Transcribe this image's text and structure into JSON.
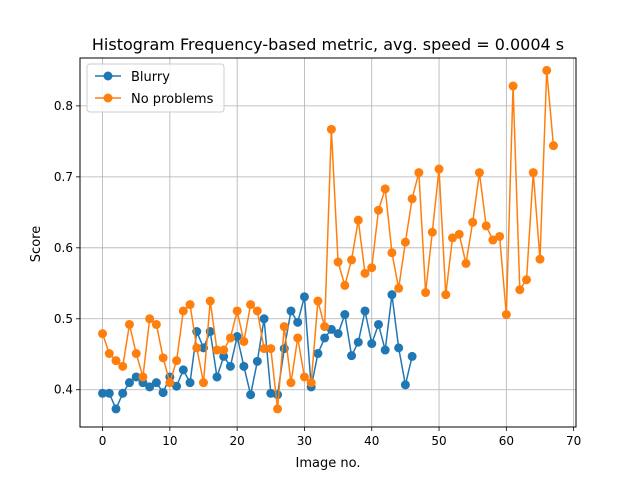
{
  "chart_data": {
    "type": "line",
    "title": "Histogram Frequency-based metric, avg. speed = 0.0004 s",
    "xlabel": "Image no.",
    "ylabel": "Score",
    "xlim": [
      -3.35,
      70.35
    ],
    "ylim": [
      0.3475,
      0.8675
    ],
    "xticks": [
      0,
      10,
      20,
      30,
      40,
      50,
      60,
      70
    ],
    "yticks": [
      0.4,
      0.5,
      0.6,
      0.7,
      0.8
    ],
    "grid": true,
    "legend_position": "upper-left",
    "series": [
      {
        "name": "Blurry",
        "color": "#1f77b4",
        "x": [
          0,
          1,
          2,
          3,
          4,
          5,
          6,
          7,
          8,
          9,
          10,
          11,
          12,
          13,
          14,
          15,
          16,
          17,
          18,
          19,
          20,
          21,
          22,
          23,
          24,
          25,
          26,
          27,
          28,
          29,
          30,
          31,
          32,
          33,
          34,
          35,
          36,
          37,
          38,
          39,
          40,
          41,
          42,
          43,
          44,
          45,
          46
        ],
        "y": [
          0.395,
          0.395,
          0.373,
          0.395,
          0.41,
          0.418,
          0.41,
          0.404,
          0.41,
          0.396,
          0.418,
          0.405,
          0.428,
          0.41,
          0.482,
          0.459,
          0.482,
          0.418,
          0.447,
          0.433,
          0.475,
          0.433,
          0.393,
          0.44,
          0.5,
          0.395,
          0.393,
          0.458,
          0.511,
          0.495,
          0.531,
          0.404,
          0.451,
          0.473,
          0.485,
          0.479,
          0.506,
          0.448,
          0.467,
          0.511,
          0.465,
          0.492,
          0.456,
          0.534,
          0.459,
          0.407,
          0.447
        ]
      },
      {
        "name": "No problems",
        "color": "#ff7f0e",
        "x": [
          0,
          1,
          2,
          3,
          4,
          5,
          6,
          7,
          8,
          9,
          10,
          11,
          12,
          13,
          14,
          15,
          16,
          17,
          18,
          19,
          20,
          21,
          22,
          23,
          24,
          25,
          26,
          27,
          28,
          29,
          30,
          31,
          32,
          33,
          34,
          35,
          36,
          37,
          38,
          39,
          40,
          41,
          42,
          43,
          44,
          45,
          46,
          47,
          48,
          49,
          50,
          51,
          52,
          53,
          54,
          55,
          56,
          57,
          58,
          59,
          60,
          61,
          62,
          63,
          64,
          65,
          66,
          67
        ],
        "y": [
          0.479,
          0.451,
          0.441,
          0.433,
          0.492,
          0.451,
          0.418,
          0.5,
          0.492,
          0.445,
          0.41,
          0.441,
          0.511,
          0.52,
          0.459,
          0.41,
          0.525,
          0.456,
          0.456,
          0.473,
          0.511,
          0.468,
          0.52,
          0.511,
          0.458,
          0.458,
          0.373,
          0.489,
          0.41,
          0.473,
          0.418,
          0.41,
          0.525,
          0.489,
          0.767,
          0.58,
          0.547,
          0.583,
          0.639,
          0.564,
          0.572,
          0.653,
          0.683,
          0.593,
          0.543,
          0.608,
          0.669,
          0.706,
          0.537,
          0.622,
          0.711,
          0.534,
          0.614,
          0.619,
          0.578,
          0.636,
          0.706,
          0.631,
          0.611,
          0.616,
          0.506,
          0.828,
          0.541,
          0.555,
          0.706,
          0.584,
          0.85,
          0.744
        ]
      }
    ]
  }
}
